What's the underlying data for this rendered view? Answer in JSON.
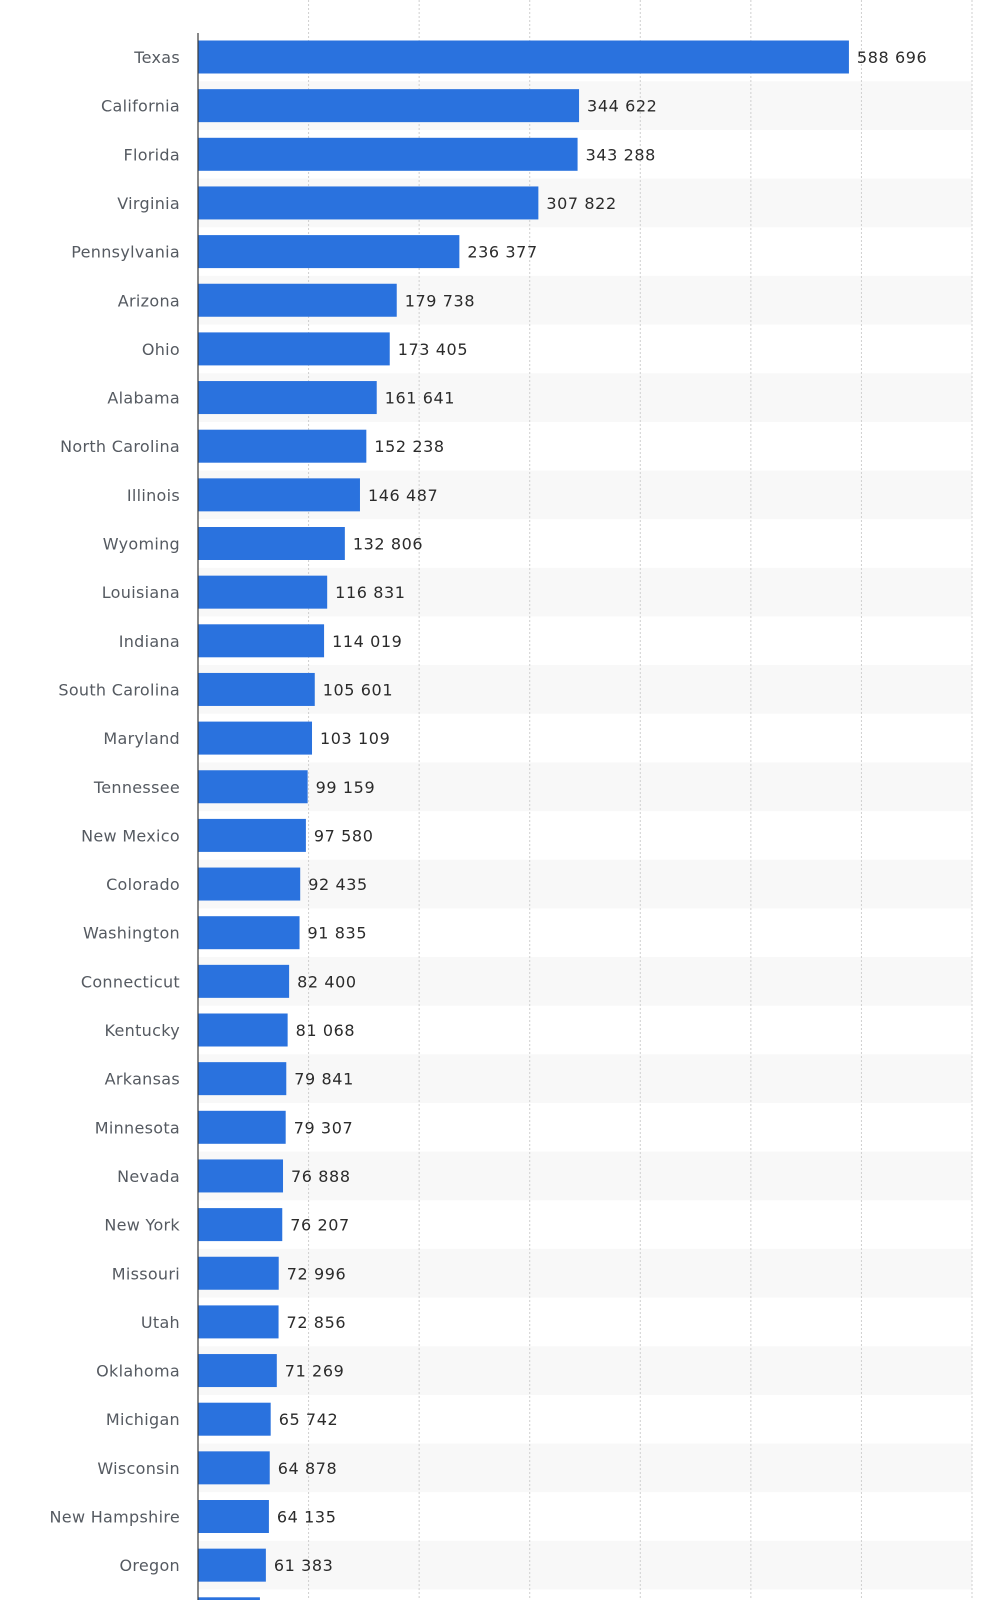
{
  "chart_data": {
    "type": "bar",
    "orientation": "horizontal",
    "categories": [
      "Texas",
      "California",
      "Florida",
      "Virginia",
      "Pennsylvania",
      "Arizona",
      "Ohio",
      "Alabama",
      "North Carolina",
      "Illinois",
      "Wyoming",
      "Louisiana",
      "Indiana",
      "South Carolina",
      "Maryland",
      "Tennessee",
      "New Mexico",
      "Colorado",
      "Washington",
      "Connecticut",
      "Kentucky",
      "Arkansas",
      "Minnesota",
      "Nevada",
      "New York",
      "Missouri",
      "Utah",
      "Oklahoma",
      "Michigan",
      "Wisconsin",
      "New Hampshire",
      "Oregon",
      ""
    ],
    "values": [
      588696,
      344622,
      343288,
      307822,
      236377,
      179738,
      173405,
      161641,
      152238,
      146487,
      132806,
      116831,
      114019,
      105601,
      103109,
      99159,
      97580,
      92435,
      91835,
      82400,
      81068,
      79841,
      79307,
      76888,
      76207,
      72996,
      72856,
      71269,
      65742,
      64878,
      64135,
      61383,
      56000
    ],
    "value_labels": [
      "588 696",
      "344 622",
      "343 288",
      "307 822",
      "236 377",
      "179 738",
      "173 405",
      "161 641",
      "152 238",
      "146 487",
      "132 806",
      "116 831",
      "114 019",
      "105 601",
      "103 109",
      "99 159",
      "97 580",
      "92 435",
      "91 835",
      "82 400",
      "81 068",
      "79 841",
      "79 307",
      "76 888",
      "76 207",
      "72 996",
      "72 856",
      "71 269",
      "65 742",
      "64 878",
      "64 135",
      "61 383",
      ""
    ],
    "xlim": [
      0,
      700000
    ],
    "x_grid_step": 100000,
    "grid": true,
    "bar_color": "#2a72de",
    "stripe_color": "#f8f8f8",
    "gridline_color": "#cfcfcf",
    "axis_color": "#3a3a3a"
  }
}
